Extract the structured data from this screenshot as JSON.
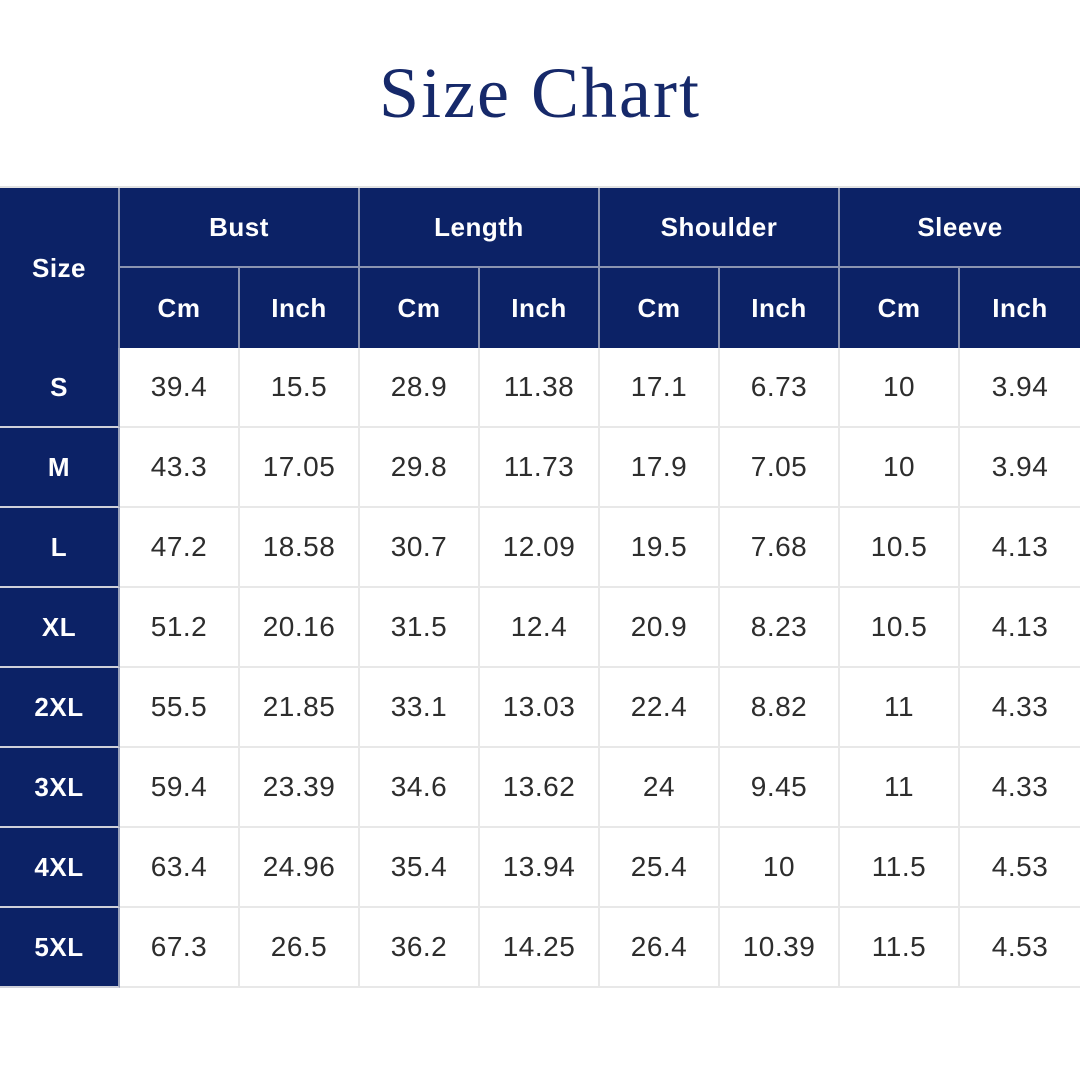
{
  "page": {
    "title": "Size Chart",
    "background": "#ffffff"
  },
  "colors": {
    "header_navy": "#0c2266",
    "title_navy": "#16296a",
    "grid_light": "#e8e8e8",
    "grid_navy": "#8b94b0",
    "cell_text": "#2d2d2d",
    "header_text": "#ffffff"
  },
  "table": {
    "size_header": "Size",
    "groups": [
      {
        "label": "Bust"
      },
      {
        "label": "Length"
      },
      {
        "label": "Shoulder"
      },
      {
        "label": "Sleeve"
      }
    ],
    "unit_headers": [
      "Cm",
      "Inch",
      "Cm",
      "Inch",
      "Cm",
      "Inch",
      "Cm",
      "Inch"
    ],
    "rows": [
      {
        "size": "S",
        "cells": [
          "39.4",
          "15.5",
          "28.9",
          "11.38",
          "17.1",
          "6.73",
          "10",
          "3.94"
        ]
      },
      {
        "size": "M",
        "cells": [
          "43.3",
          "17.05",
          "29.8",
          "11.73",
          "17.9",
          "7.05",
          "10",
          "3.94"
        ]
      },
      {
        "size": "L",
        "cells": [
          "47.2",
          "18.58",
          "30.7",
          "12.09",
          "19.5",
          "7.68",
          "10.5",
          "4.13"
        ]
      },
      {
        "size": "XL",
        "cells": [
          "51.2",
          "20.16",
          "31.5",
          "12.4",
          "20.9",
          "8.23",
          "10.5",
          "4.13"
        ]
      },
      {
        "size": "2XL",
        "cells": [
          "55.5",
          "21.85",
          "33.1",
          "13.03",
          "22.4",
          "8.82",
          "11",
          "4.33"
        ]
      },
      {
        "size": "3XL",
        "cells": [
          "59.4",
          "23.39",
          "34.6",
          "13.62",
          "24",
          "9.45",
          "11",
          "4.33"
        ]
      },
      {
        "size": "4XL",
        "cells": [
          "63.4",
          "24.96",
          "35.4",
          "13.94",
          "25.4",
          "10",
          "11.5",
          "4.53"
        ]
      },
      {
        "size": "5XL",
        "cells": [
          "67.3",
          "26.5",
          "36.2",
          "14.25",
          "26.4",
          "10.39",
          "11.5",
          "4.53"
        ]
      }
    ]
  },
  "chart_data": {
    "type": "table",
    "title": "Size Chart",
    "columns": [
      "Size",
      "Bust Cm",
      "Bust Inch",
      "Length Cm",
      "Length Inch",
      "Shoulder Cm",
      "Shoulder Inch",
      "Sleeve Cm",
      "Sleeve Inch"
    ],
    "rows": [
      [
        "S",
        39.4,
        15.5,
        28.9,
        11.38,
        17.1,
        6.73,
        10,
        3.94
      ],
      [
        "M",
        43.3,
        17.05,
        29.8,
        11.73,
        17.9,
        7.05,
        10,
        3.94
      ],
      [
        "L",
        47.2,
        18.58,
        30.7,
        12.09,
        19.5,
        7.68,
        10.5,
        4.13
      ],
      [
        "XL",
        51.2,
        20.16,
        31.5,
        12.4,
        20.9,
        8.23,
        10.5,
        4.13
      ],
      [
        "2XL",
        55.5,
        21.85,
        33.1,
        13.03,
        22.4,
        8.82,
        11,
        4.33
      ],
      [
        "3XL",
        59.4,
        23.39,
        34.6,
        13.62,
        24,
        9.45,
        11,
        4.33
      ],
      [
        "4XL",
        63.4,
        24.96,
        35.4,
        13.94,
        25.4,
        10,
        11.5,
        4.53
      ],
      [
        "5XL",
        67.3,
        26.5,
        36.2,
        14.25,
        26.4,
        10.39,
        11.5,
        4.53
      ]
    ]
  }
}
